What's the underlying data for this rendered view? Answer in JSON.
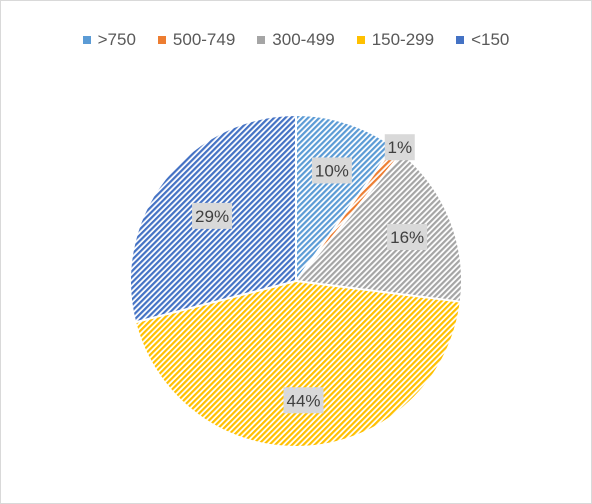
{
  "chart_data": {
    "type": "pie",
    "title": "",
    "legend_position": "top",
    "categories": [
      ">750",
      "500-749",
      "300-499",
      "150-299",
      "<150"
    ],
    "values": [
      10,
      1,
      16,
      44,
      29
    ],
    "value_labels": [
      "10%",
      "1%",
      "16%",
      "44%",
      "29%"
    ],
    "colors": [
      "#5b9bd5",
      "#ed7d31",
      "#a5a5a5",
      "#ffc000",
      "#4472c4"
    ],
    "fill_pattern": "diagonal-hatch"
  }
}
